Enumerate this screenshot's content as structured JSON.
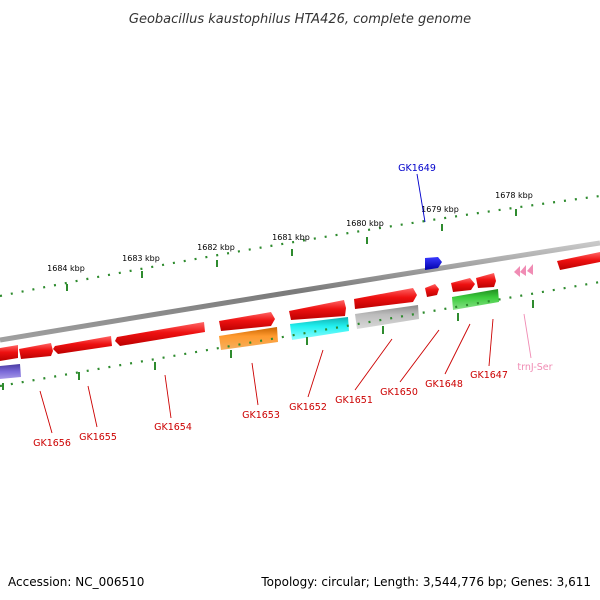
{
  "title": "Geobacillus kaustophilus HTA426, complete genome",
  "footer": {
    "accession": "Accession: NC_006510",
    "summary": "Topology: circular; Length: 3,544,776 bp; Genes: 3,611"
  },
  "scale_labels": [
    "1684 kbp",
    "1683 kbp",
    "1682 kbp",
    "1681 kbp",
    "1680 kbp",
    "1679 kbp",
    "1678 kbp"
  ],
  "colors": {
    "backbone": "#8c8c8c",
    "ticks": "#2e8b2e",
    "gene_red": "#ee1111",
    "gene_label": "#cc0000",
    "gene_blue": "#0000cc",
    "trna": "#f08cb4",
    "orange": "#f08c1e",
    "cyan": "#22e6e6",
    "gray": "#b4b4b4",
    "green": "#33bb33",
    "purple": "#6a5acd"
  },
  "genes": [
    {
      "label": "GK1649",
      "color": "#0000cc"
    },
    {
      "label": "GK1656",
      "color": "#cc0000"
    },
    {
      "label": "GK1655",
      "color": "#cc0000"
    },
    {
      "label": "GK1654",
      "color": "#cc0000"
    },
    {
      "label": "GK1653",
      "color": "#cc0000"
    },
    {
      "label": "GK1652",
      "color": "#cc0000"
    },
    {
      "label": "GK1651",
      "color": "#cc0000"
    },
    {
      "label": "GK1650",
      "color": "#cc0000"
    },
    {
      "label": "GK1648",
      "color": "#cc0000"
    },
    {
      "label": "GK1647",
      "color": "#cc0000"
    },
    {
      "label": "trnJ-Ser",
      "color": "#f08cb4"
    }
  ]
}
